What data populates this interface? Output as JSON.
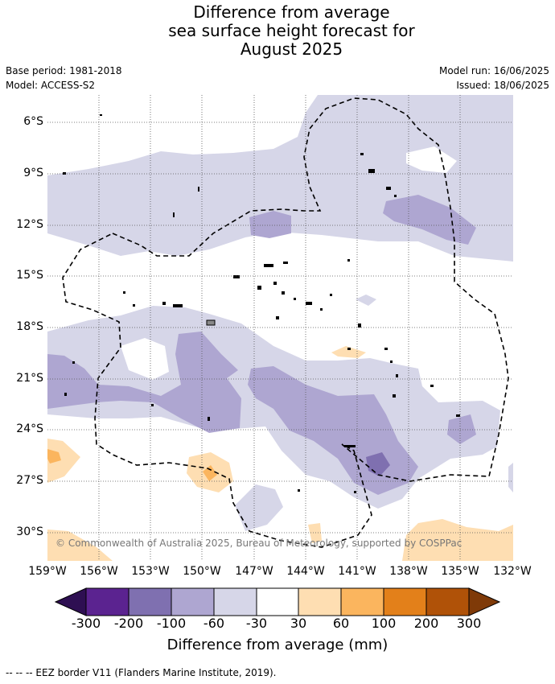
{
  "title_lines": [
    "Difference from average",
    "sea surface height forecast for",
    "August 2025"
  ],
  "meta_left": [
    "Base period: 1981-2018",
    "Model: ACCESS-S2"
  ],
  "meta_right": [
    "Model run: 16/06/2025",
    "Issued: 18/06/2025"
  ],
  "lat_labels": [
    "6°S",
    "9°S",
    "12°S",
    "15°S",
    "18°S",
    "21°S",
    "24°S",
    "27°S",
    "30°S"
  ],
  "lon_labels": [
    "159°W",
    "156°W",
    "153°W",
    "150°W",
    "147°W",
    "144°W",
    "141°W",
    "138°W",
    "135°W",
    "132°W"
  ],
  "copyright": "© Commonwealth of Australia 2025, Bureau of Meteorology, supported by COSPPac",
  "colorbar": {
    "ticks": [
      "-300",
      "-200",
      "-100",
      "-60",
      "-30",
      "30",
      "60",
      "100",
      "200",
      "300"
    ],
    "colors": [
      "#2e0f52",
      "#5b2390",
      "#7f70b0",
      "#aea6d1",
      "#d6d6e8",
      "#ffffff",
      "#fedeb2",
      "#fbb55e",
      "#e3801a",
      "#b05208",
      "#7f3a08"
    ],
    "label": "Difference from average (mm)"
  },
  "footer": "--  --  -- EEZ border V11 (Flanders Marine Institute, 2019).",
  "map_colors": {
    "neg_30_60": "#d6d6e8",
    "neg_60_100": "#aea6d1",
    "neg_100_200": "#7f70b0",
    "pos_30_60": "#fedeb2",
    "pos_60_100": "#fbb55e"
  }
}
